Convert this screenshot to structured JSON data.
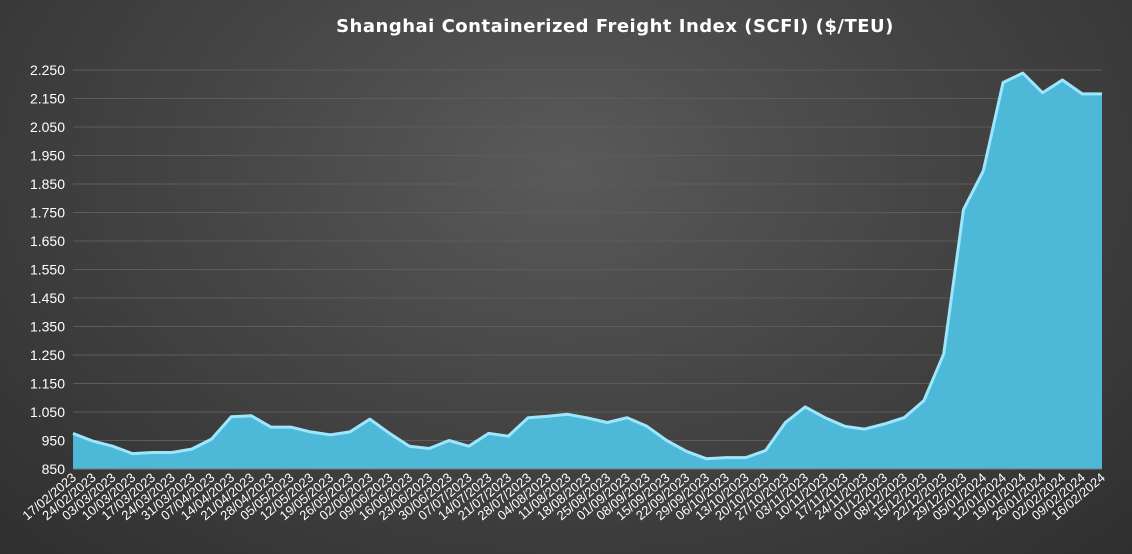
{
  "chart_data": {
    "type": "area",
    "title": "Shanghai Containerized Freight Index (SCFI) ($/TEU)",
    "xlabel": "",
    "ylabel": "",
    "ylim": [
      850,
      2250
    ],
    "grid": true,
    "colors": {
      "fill": "#4db8d8",
      "line": "#9ee6fb",
      "grid": "#5c5c5c",
      "text": "#ffffff"
    },
    "y_ticks": [
      "850",
      "950",
      "1.050",
      "1.150",
      "1.250",
      "1.350",
      "1.450",
      "1.550",
      "1.650",
      "1.750",
      "1.850",
      "1.950",
      "2.050",
      "2.150",
      "2.250"
    ],
    "categories": [
      "17/02/2023",
      "24/02/2023",
      "03/03/2023",
      "10/03/2023",
      "17/03/2023",
      "24/03/2023",
      "31/03/2023",
      "07/04/2023",
      "14/04/2023",
      "21/04/2023",
      "28/04/2023",
      "05/05/2023",
      "12/05/2023",
      "19/05/2023",
      "26/05/2023",
      "02/06/2023",
      "09/06/2023",
      "16/06/2023",
      "23/06/2023",
      "30/06/2023",
      "07/07/2023",
      "14/07/2023",
      "21/07/2023",
      "28/07/2023",
      "04/08/2023",
      "11/08/2023",
      "18/08/2023",
      "25/08/2023",
      "01/09/2023",
      "08/09/2023",
      "15/09/2023",
      "22/09/2023",
      "29/09/2023",
      "06/10/2023",
      "13/10/2023",
      "20/10/2023",
      "27/10/2023",
      "03/11/2023",
      "10/11/2023",
      "17/11/2023",
      "24/11/2023",
      "01/12/2023",
      "08/12/2023",
      "15/12/2023",
      "22/12/2023",
      "29/12/2023",
      "05/01/2024",
      "12/01/2024",
      "19/01/2024",
      "26/01/2024",
      "02/02/2024",
      "09/02/2024",
      "16/02/2024"
    ],
    "values": [
      975,
      948,
      930,
      904,
      908,
      908,
      920,
      955,
      1033,
      1037,
      997,
      997,
      980,
      970,
      980,
      1025,
      975,
      930,
      922,
      950,
      930,
      975,
      965,
      1030,
      1035,
      1042,
      1029,
      1013,
      1030,
      1000,
      950,
      912,
      886,
      890,
      890,
      915,
      1013,
      1068,
      1030,
      1000,
      990,
      1008,
      1030,
      1090,
      1254,
      1760,
      1896,
      2206,
      2239,
      2170,
      2215,
      2166,
      2166
    ]
  }
}
